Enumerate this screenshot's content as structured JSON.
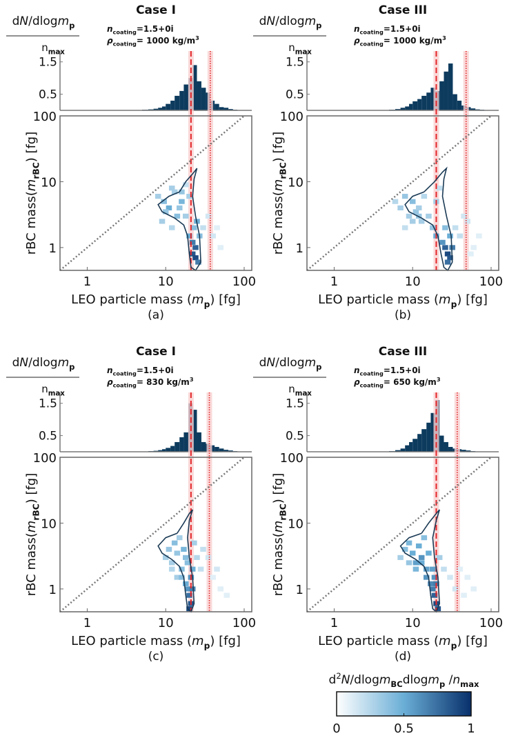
{
  "chart_data": [
    {
      "type": "heatmap",
      "title": "Case I",
      "annotations": [
        [
          "n",
          "coating",
          "=1.5+0i"
        ],
        [
          "ρ",
          "coating",
          "= 1000 kg/m",
          "3"
        ]
      ],
      "hist_label": [
        "d",
        "N",
        "/dlog",
        "m",
        "p"
      ],
      "hist_label_denominator": [
        "n",
        "max"
      ],
      "x_label": [
        "LEO particle mass (",
        "m",
        "p",
        ") [fg]"
      ],
      "y_label": [
        "rBC mass(",
        "m",
        "rBC",
        ") [fg]"
      ],
      "caption": "(a)",
      "xlim": [
        0.45,
        125
      ],
      "ylim": [
        0.45,
        100
      ],
      "xticks": [
        1,
        10,
        100
      ],
      "yticks": [
        1,
        10,
        100
      ],
      "xscale": "log",
      "yscale": "log",
      "identity_line": true,
      "reference_lines": [
        {
          "x": 21,
          "style": "dashed"
        },
        {
          "x": 37,
          "style": "dotted"
        }
      ],
      "histogram": {
        "bins": [
          5,
          6,
          7,
          8,
          9,
          10,
          11.5,
          13,
          15,
          17,
          19.5,
          22,
          25,
          28.5,
          32.5,
          37,
          42,
          48,
          55,
          63,
          72,
          82
        ],
        "counts": [
          0.02,
          0.03,
          0.05,
          0.08,
          0.12,
          0.2,
          0.3,
          0.45,
          0.6,
          0.8,
          1.0,
          1.4,
          0.9,
          0.7,
          0.55,
          0.3,
          0.2,
          0.1,
          0.08,
          0.04,
          0.02
        ],
        "ylim": [
          0,
          1.75
        ],
        "yticks": [
          0.5,
          1.5
        ],
        "color": "#0d3b5e"
      },
      "cells": {
        "x": [
          8,
          9.5,
          11,
          12,
          14,
          10,
          13,
          16,
          9,
          12,
          15,
          18,
          20,
          22,
          24,
          22,
          24,
          26,
          23,
          25,
          27,
          30,
          35,
          40,
          45,
          50,
          18,
          20,
          16
        ],
        "y": [
          6,
          5,
          4,
          8,
          3,
          3.5,
          7,
          5,
          2.5,
          2,
          4,
          3,
          1.5,
          1.2,
          1,
          0.8,
          0.7,
          0.6,
          2,
          2.5,
          1.5,
          2,
          3,
          1.5,
          2,
          1,
          9,
          6,
          7
        ],
        "values": [
          0.3,
          0.4,
          0.5,
          0.3,
          0.4,
          0.35,
          0.3,
          0.45,
          0.3,
          0.25,
          0.35,
          0.3,
          0.5,
          0.7,
          0.8,
          0.85,
          0.9,
          0.7,
          0.4,
          0.5,
          0.4,
          0.2,
          0.15,
          0.15,
          0.1,
          0.1,
          0.2,
          0.3,
          0.35
        ]
      },
      "contour": {
        "x": [
          15,
          11,
          8,
          9,
          13,
          17,
          19,
          20,
          21,
          24,
          28,
          27,
          24,
          22,
          23,
          25,
          23,
          18,
          15
        ],
        "y": [
          7,
          6,
          4.5,
          3.5,
          2.8,
          2.2,
          1.5,
          0.8,
          0.5,
          0.45,
          0.6,
          1.5,
          3,
          6,
          11,
          16,
          14,
          10,
          7
        ]
      }
    },
    {
      "type": "heatmap",
      "title": "Case III",
      "annotations": [
        [
          "n",
          "coating",
          "=1.5+0i"
        ],
        [
          "ρ",
          "coating",
          "= 1000 kg/m",
          "3"
        ]
      ],
      "hist_label": [
        "d",
        "N",
        "/dlog",
        "m",
        "p"
      ],
      "hist_label_denominator": [
        "n",
        "max"
      ],
      "x_label": [
        "LEO particle mass (",
        "m",
        "p",
        ") [fg]"
      ],
      "y_label": [
        "rBC mass(",
        "m",
        "rBC",
        ") [fg]"
      ],
      "caption": "(b)",
      "xlim": [
        0.45,
        125
      ],
      "ylim": [
        0.45,
        100
      ],
      "xticks": [
        1,
        10,
        100
      ],
      "yticks": [
        1,
        10,
        100
      ],
      "xscale": "log",
      "yscale": "log",
      "identity_line": true,
      "reference_lines": [
        {
          "x": 20,
          "style": "dashed"
        },
        {
          "x": 48,
          "style": "dotted"
        }
      ],
      "histogram": {
        "bins": [
          5,
          6,
          7,
          8,
          9,
          10,
          11.5,
          13,
          15,
          17,
          19.5,
          22,
          25,
          28.5,
          32.5,
          37,
          42,
          48,
          55,
          63,
          72,
          82
        ],
        "counts": [
          0.02,
          0.04,
          0.08,
          0.12,
          0.2,
          0.28,
          0.35,
          0.45,
          0.55,
          0.7,
          0.6,
          0.9,
          1.2,
          1.45,
          0.5,
          0.3,
          0.15,
          0.1,
          0.06,
          0.03,
          0.02
        ],
        "ylim": [
          0,
          1.75
        ],
        "yticks": [
          0.5,
          1.5
        ],
        "color": "#0d3b5e"
      },
      "cells": {
        "x": [
          6,
          7,
          8,
          9,
          10,
          11,
          12,
          13,
          14,
          8,
          10,
          12,
          16,
          18,
          20,
          24,
          26,
          28,
          30,
          32,
          28,
          30,
          26,
          35,
          40,
          50,
          60,
          70,
          45,
          55,
          22,
          20
        ],
        "y": [
          5,
          4,
          6,
          3,
          5,
          3.5,
          4,
          2.5,
          6,
          2,
          2.5,
          3,
          3,
          2,
          1.5,
          1.2,
          1,
          0.8,
          0.7,
          1,
          0.6,
          1.5,
          2,
          2,
          1.5,
          2.5,
          1,
          1.5,
          3,
          0.8,
          8,
          5
        ],
        "values": [
          0.25,
          0.3,
          0.35,
          0.3,
          0.4,
          0.35,
          0.3,
          0.3,
          0.25,
          0.2,
          0.3,
          0.35,
          0.3,
          0.35,
          0.5,
          0.6,
          0.8,
          0.9,
          0.85,
          0.7,
          0.75,
          0.5,
          0.4,
          0.2,
          0.2,
          0.15,
          0.1,
          0.1,
          0.15,
          0.1,
          0.2,
          0.3
        ]
      },
      "contour": {
        "x": [
          14,
          10,
          8,
          9,
          13,
          18,
          21,
          23,
          25,
          28,
          32,
          31,
          27,
          24,
          25,
          27,
          24,
          19,
          14
        ],
        "y": [
          7,
          6,
          4.5,
          3.5,
          2.8,
          2.2,
          1.5,
          0.8,
          0.5,
          0.45,
          0.6,
          1.5,
          3,
          6,
          11,
          16,
          14,
          10,
          7
        ]
      }
    },
    {
      "type": "heatmap",
      "title": "Case I",
      "annotations": [
        [
          "n",
          "coating",
          "=1.5+0i"
        ],
        [
          "ρ",
          "coating",
          "= 830 kg/m",
          "3"
        ]
      ],
      "hist_label": [
        "d",
        "N",
        "/dlog",
        "m",
        "p"
      ],
      "hist_label_denominator": [
        "n",
        "max"
      ],
      "x_label": [
        "LEO particle mass (",
        "m",
        "p",
        ") [fg]"
      ],
      "y_label": [
        "rBC mass(",
        "m",
        "rBC",
        ") [fg]"
      ],
      "caption": "(c)",
      "xlim": [
        0.45,
        125
      ],
      "ylim": [
        0.45,
        100
      ],
      "xticks": [
        1,
        10,
        100
      ],
      "yticks": [
        1,
        10,
        100
      ],
      "xscale": "log",
      "yscale": "log",
      "identity_line": true,
      "reference_lines": [
        {
          "x": 21,
          "style": "dashed"
        },
        {
          "x": 36,
          "style": "dotted"
        }
      ],
      "histogram": {
        "bins": [
          5,
          6,
          7,
          8,
          9,
          10,
          11.5,
          13,
          15,
          17,
          19.5,
          22,
          25,
          28.5,
          32.5,
          37,
          42,
          48,
          55,
          63,
          72,
          82
        ],
        "counts": [
          0.01,
          0.02,
          0.03,
          0.05,
          0.08,
          0.12,
          0.18,
          0.3,
          0.45,
          0.6,
          1.5,
          1.3,
          0.6,
          0.3,
          0.25,
          0.2,
          0.15,
          0.1,
          0.06,
          0.04,
          0.02
        ],
        "ylim": [
          0,
          1.75
        ],
        "yticks": [
          0.5,
          1.5
        ],
        "color": "#0d3b5e"
      },
      "cells": {
        "x": [
          10,
          11,
          12,
          13,
          14,
          15,
          16,
          17,
          18,
          12,
          14,
          16,
          18,
          19,
          20,
          21,
          22,
          20,
          21,
          22,
          19,
          23,
          25,
          28,
          30,
          35,
          40,
          45,
          50,
          60
        ],
        "y": [
          3,
          4,
          2.5,
          5,
          3.5,
          6,
          2,
          4,
          3,
          2,
          1.5,
          1.5,
          1.2,
          1,
          0.8,
          0.6,
          1,
          0.5,
          1.5,
          2,
          2.5,
          5,
          3,
          2,
          4,
          3,
          1.5,
          2,
          1,
          0.8
        ],
        "values": [
          0.3,
          0.35,
          0.3,
          0.4,
          0.35,
          0.3,
          0.4,
          0.45,
          0.4,
          0.25,
          0.3,
          0.4,
          0.5,
          0.6,
          0.75,
          0.85,
          0.7,
          0.9,
          0.6,
          0.5,
          0.4,
          0.3,
          0.25,
          0.2,
          0.2,
          0.15,
          0.1,
          0.15,
          0.1,
          0.1
        ]
      },
      "contour": {
        "x": [
          14,
          10,
          8,
          9,
          12,
          15,
          17,
          18,
          19,
          21,
          23,
          22,
          20,
          19,
          20,
          22,
          20,
          17,
          14
        ],
        "y": [
          7,
          6,
          4.5,
          3.5,
          2.8,
          2.2,
          1.5,
          0.8,
          0.5,
          0.45,
          0.6,
          1.5,
          3,
          6,
          11,
          16,
          14,
          10,
          7
        ]
      }
    },
    {
      "type": "heatmap",
      "title": "Case III",
      "annotations": [
        [
          "n",
          "coating",
          "=1.5+0i"
        ],
        [
          "ρ",
          "coating",
          "= 650 kg/m",
          "3"
        ]
      ],
      "hist_label": [
        "d",
        "N",
        "/dlog",
        "m",
        "p"
      ],
      "hist_label_denominator": [
        "n",
        "max"
      ],
      "x_label": [
        "LEO particle mass (",
        "m",
        "p",
        ") [fg]"
      ],
      "y_label": [
        "rBC mass(",
        "m",
        "rBC",
        ") [fg]"
      ],
      "caption": "(d)",
      "xlim": [
        0.45,
        125
      ],
      "ylim": [
        0.45,
        100
      ],
      "xticks": [
        1,
        10,
        100
      ],
      "yticks": [
        1,
        10,
        100
      ],
      "xscale": "log",
      "yscale": "log",
      "identity_line": true,
      "reference_lines": [
        {
          "x": 20,
          "style": "dashed"
        },
        {
          "x": 37,
          "style": "dotted"
        }
      ],
      "histogram": {
        "bins": [
          5,
          6,
          7,
          8,
          9,
          10,
          11.5,
          13,
          15,
          17,
          19.5,
          22,
          25,
          28.5,
          32.5,
          37,
          42,
          48,
          55,
          63,
          72,
          82
        ],
        "counts": [
          0.02,
          0.05,
          0.1,
          0.2,
          0.3,
          0.4,
          0.55,
          0.7,
          0.9,
          1.2,
          1.6,
          0.5,
          0.3,
          0.15,
          0.1,
          0.08,
          0.06,
          0.04,
          0.02,
          0.01,
          0.01
        ],
        "ylim": [
          0,
          1.75
        ],
        "yticks": [
          0.5,
          1.5
        ],
        "color": "#0d3b5e"
      },
      "cells": {
        "x": [
          7,
          8,
          9,
          10,
          11,
          12,
          13,
          14,
          15,
          16,
          9,
          11,
          13,
          15,
          17,
          18,
          19,
          20,
          21,
          19,
          20,
          18,
          22,
          25,
          30,
          35,
          40,
          50,
          60,
          45
        ],
        "y": [
          3,
          4,
          5,
          3.5,
          2.5,
          4.5,
          3,
          6,
          2,
          3.5,
          2.5,
          2,
          2.5,
          1.5,
          1.2,
          1,
          0.8,
          0.6,
          0.5,
          1.5,
          1.2,
          2,
          3,
          2,
          1.5,
          1,
          2,
          1.5,
          1,
          0.8
        ],
        "values": [
          0.3,
          0.4,
          0.45,
          0.5,
          0.55,
          0.5,
          0.6,
          0.4,
          0.55,
          0.5,
          0.35,
          0.45,
          0.5,
          0.6,
          0.65,
          0.7,
          0.8,
          0.9,
          0.85,
          0.6,
          0.7,
          0.55,
          0.3,
          0.2,
          0.15,
          0.15,
          0.1,
          0.1,
          0.1,
          0.1
        ]
      },
      "contour": {
        "x": [
          13,
          9,
          7,
          8,
          11,
          14,
          16,
          17,
          18,
          20,
          22,
          21,
          19,
          18,
          20,
          22,
          20,
          16,
          13
        ],
        "y": [
          7,
          6,
          4.5,
          3.5,
          2.8,
          2.2,
          1.5,
          0.8,
          0.5,
          0.45,
          0.6,
          1.5,
          3,
          6,
          11,
          16,
          14,
          10,
          7
        ]
      }
    }
  ],
  "colorbar": {
    "label": [
      "d",
      "2",
      "N",
      "/dlog",
      "m",
      "BC",
      "dlog",
      "m",
      "p",
      " /",
      "n",
      "max"
    ],
    "lim": [
      0,
      1
    ],
    "ticks": [
      0,
      0.5,
      1
    ],
    "colors": [
      "#ffffff",
      "#6aaed6",
      "#08306b"
    ]
  }
}
